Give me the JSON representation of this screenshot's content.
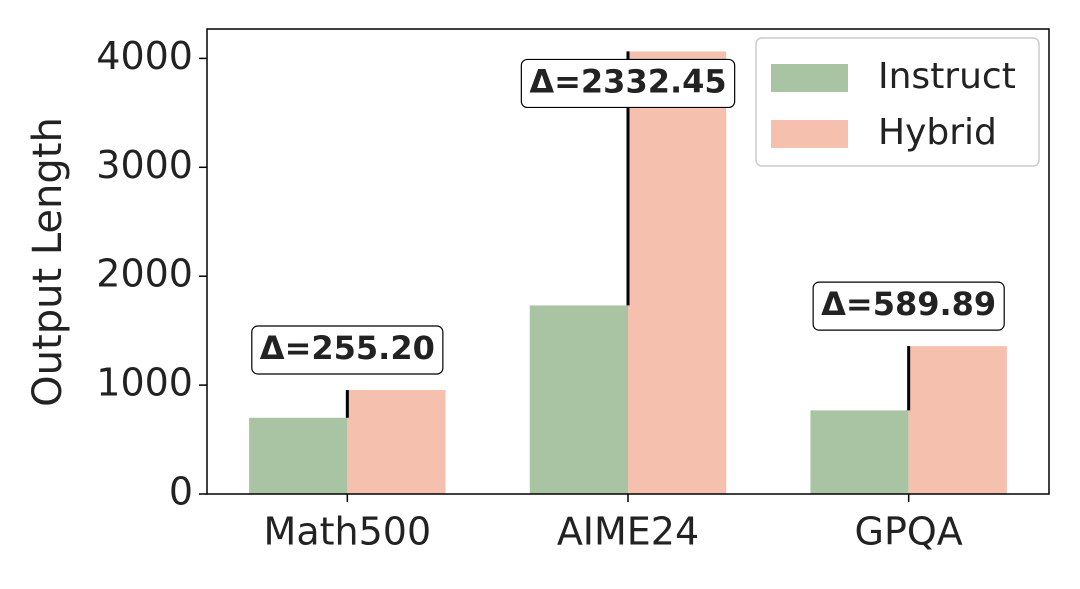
{
  "chart_data": {
    "type": "bar",
    "ylabel": "Output Length",
    "categories": [
      "Math500",
      "AIME24",
      "GPQA"
    ],
    "series": [
      {
        "name": "Instruct",
        "color": "#a8c4a2",
        "values": [
          700,
          1731.55,
          768
        ]
      },
      {
        "name": "Hybrid",
        "color": "#f5c1ae",
        "values": [
          955.2,
          4064,
          1357.89
        ]
      }
    ],
    "annotations": [
      "Δ=255.20",
      "Δ=2332.45",
      "Δ=589.89"
    ],
    "ylim": [
      0,
      4270
    ],
    "yticks": [
      0,
      1000,
      2000,
      3000,
      4000
    ],
    "legend": "upper right"
  }
}
